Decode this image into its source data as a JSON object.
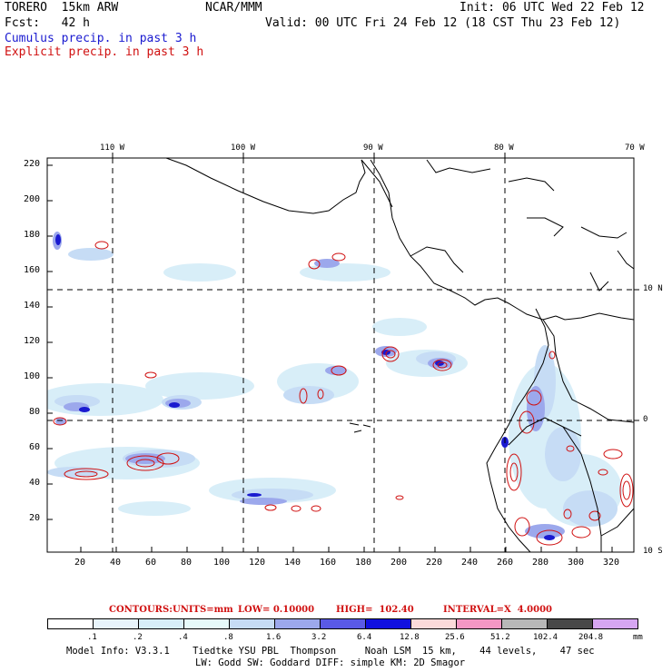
{
  "header": {
    "model": "TORERO  15km ARW",
    "org": "NCAR/MMM",
    "init": "Init: 06 UTC Wed 22 Feb 12",
    "fcst": "Fcst:   42 h",
    "valid": "Valid: 00 UTC Fri 24 Feb 12 (18 CST Thu 23 Feb 12)",
    "legend_cumulus": "Cumulus precip. in past 3 h",
    "legend_explicit": "Explicit precip. in past 3 h"
  },
  "colors": {
    "cumulus": "#1a1ad0",
    "explicit": "#d01010",
    "coast": "#000000"
  },
  "map": {
    "lon_labels": [
      "110 W",
      "100 W",
      "90 W",
      "80 W",
      "70 W"
    ],
    "lat_labels": [
      "10 N",
      "0",
      "10 S"
    ],
    "y_ticks": [
      "220",
      "200",
      "180",
      "160",
      "140",
      "120",
      "100",
      "80",
      "60",
      "40",
      "20"
    ],
    "x_ticks": [
      "20",
      "40",
      "60",
      "80",
      "100",
      "120",
      "140",
      "160",
      "180",
      "200",
      "220",
      "240",
      "260",
      "280",
      "300",
      "320"
    ]
  },
  "contours_line": {
    "label": "CONTOURS:",
    "units": "UNITS=mm",
    "low": "LOW= 0.10000",
    "high": "HIGH=  102.40",
    "interval": "INTERVAL=X  4.0000"
  },
  "colorbar": {
    "labels": [
      ".1",
      ".2",
      ".4",
      ".8",
      "1.6",
      "3.2",
      "6.4",
      "12.8",
      "25.6",
      "51.2",
      "102.4",
      "204.8"
    ],
    "unit": "mm",
    "colors": [
      "#ffffff",
      "#e8f4fb",
      "#d8eef8",
      "#e6fafa",
      "#c6dcf5",
      "#9ca8ec",
      "#5a5ae6",
      "#1010e0",
      "#fbdada",
      "#f497c4",
      "#b8b8b8",
      "#484848",
      "#d6a6f2"
    ]
  },
  "footer": {
    "line1": "Model Info: V3.3.1    Tiedtke YSU PBL  Thompson     Noah LSM  15 km,    44 levels,    47 sec",
    "line2": "LW: Godd SW: Goddard DIFF: simple KM: 2D Smagor"
  }
}
